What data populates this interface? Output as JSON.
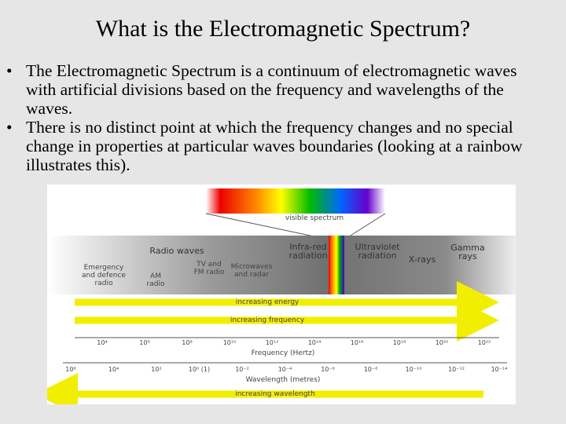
{
  "title": "What is the Electromagnetic Spectrum?",
  "bullets": [
    "The Electromagnetic Spectrum is a continuum of electromagnetic waves with artificial divisions based on the frequency and wavelengths of the waves.",
    "There is no distinct point at which the frequency changes and no special change in properties at particular waves boundaries (looking at a rainbow illustrates this)."
  ],
  "diagram": {
    "visible_label": "visible spectrum",
    "bands": [
      "Radio waves",
      "Infra-red radiation",
      "Ultraviolet radiation",
      "X-rays",
      "Gamma rays"
    ],
    "sub_bands": [
      "Emergency and defence radio",
      "AM radio",
      "TV and FM radio",
      "Microwaves and radar"
    ],
    "arrows": [
      "increasing energy",
      "increasing frequency"
    ],
    "frequency_ticks": [
      "10⁴",
      "10⁶",
      "10⁸",
      "10¹⁰",
      "10¹²",
      "10¹⁴",
      "10¹⁶",
      "10¹⁸",
      "10²⁰",
      "10²²"
    ],
    "frequency_label": "Frequency (Hertz)",
    "wavelength_ticks": [
      "10⁶",
      "10⁴",
      "10²",
      "10⁰ (1)",
      "10⁻²",
      "10⁻⁴",
      "10⁻⁶",
      "10⁻⁸",
      "10⁻¹⁰",
      "10⁻¹²",
      "10⁻¹⁴"
    ],
    "wavelength_label": "Wavelength (metres)",
    "wavelength_arrow": "increasing wavelength"
  }
}
